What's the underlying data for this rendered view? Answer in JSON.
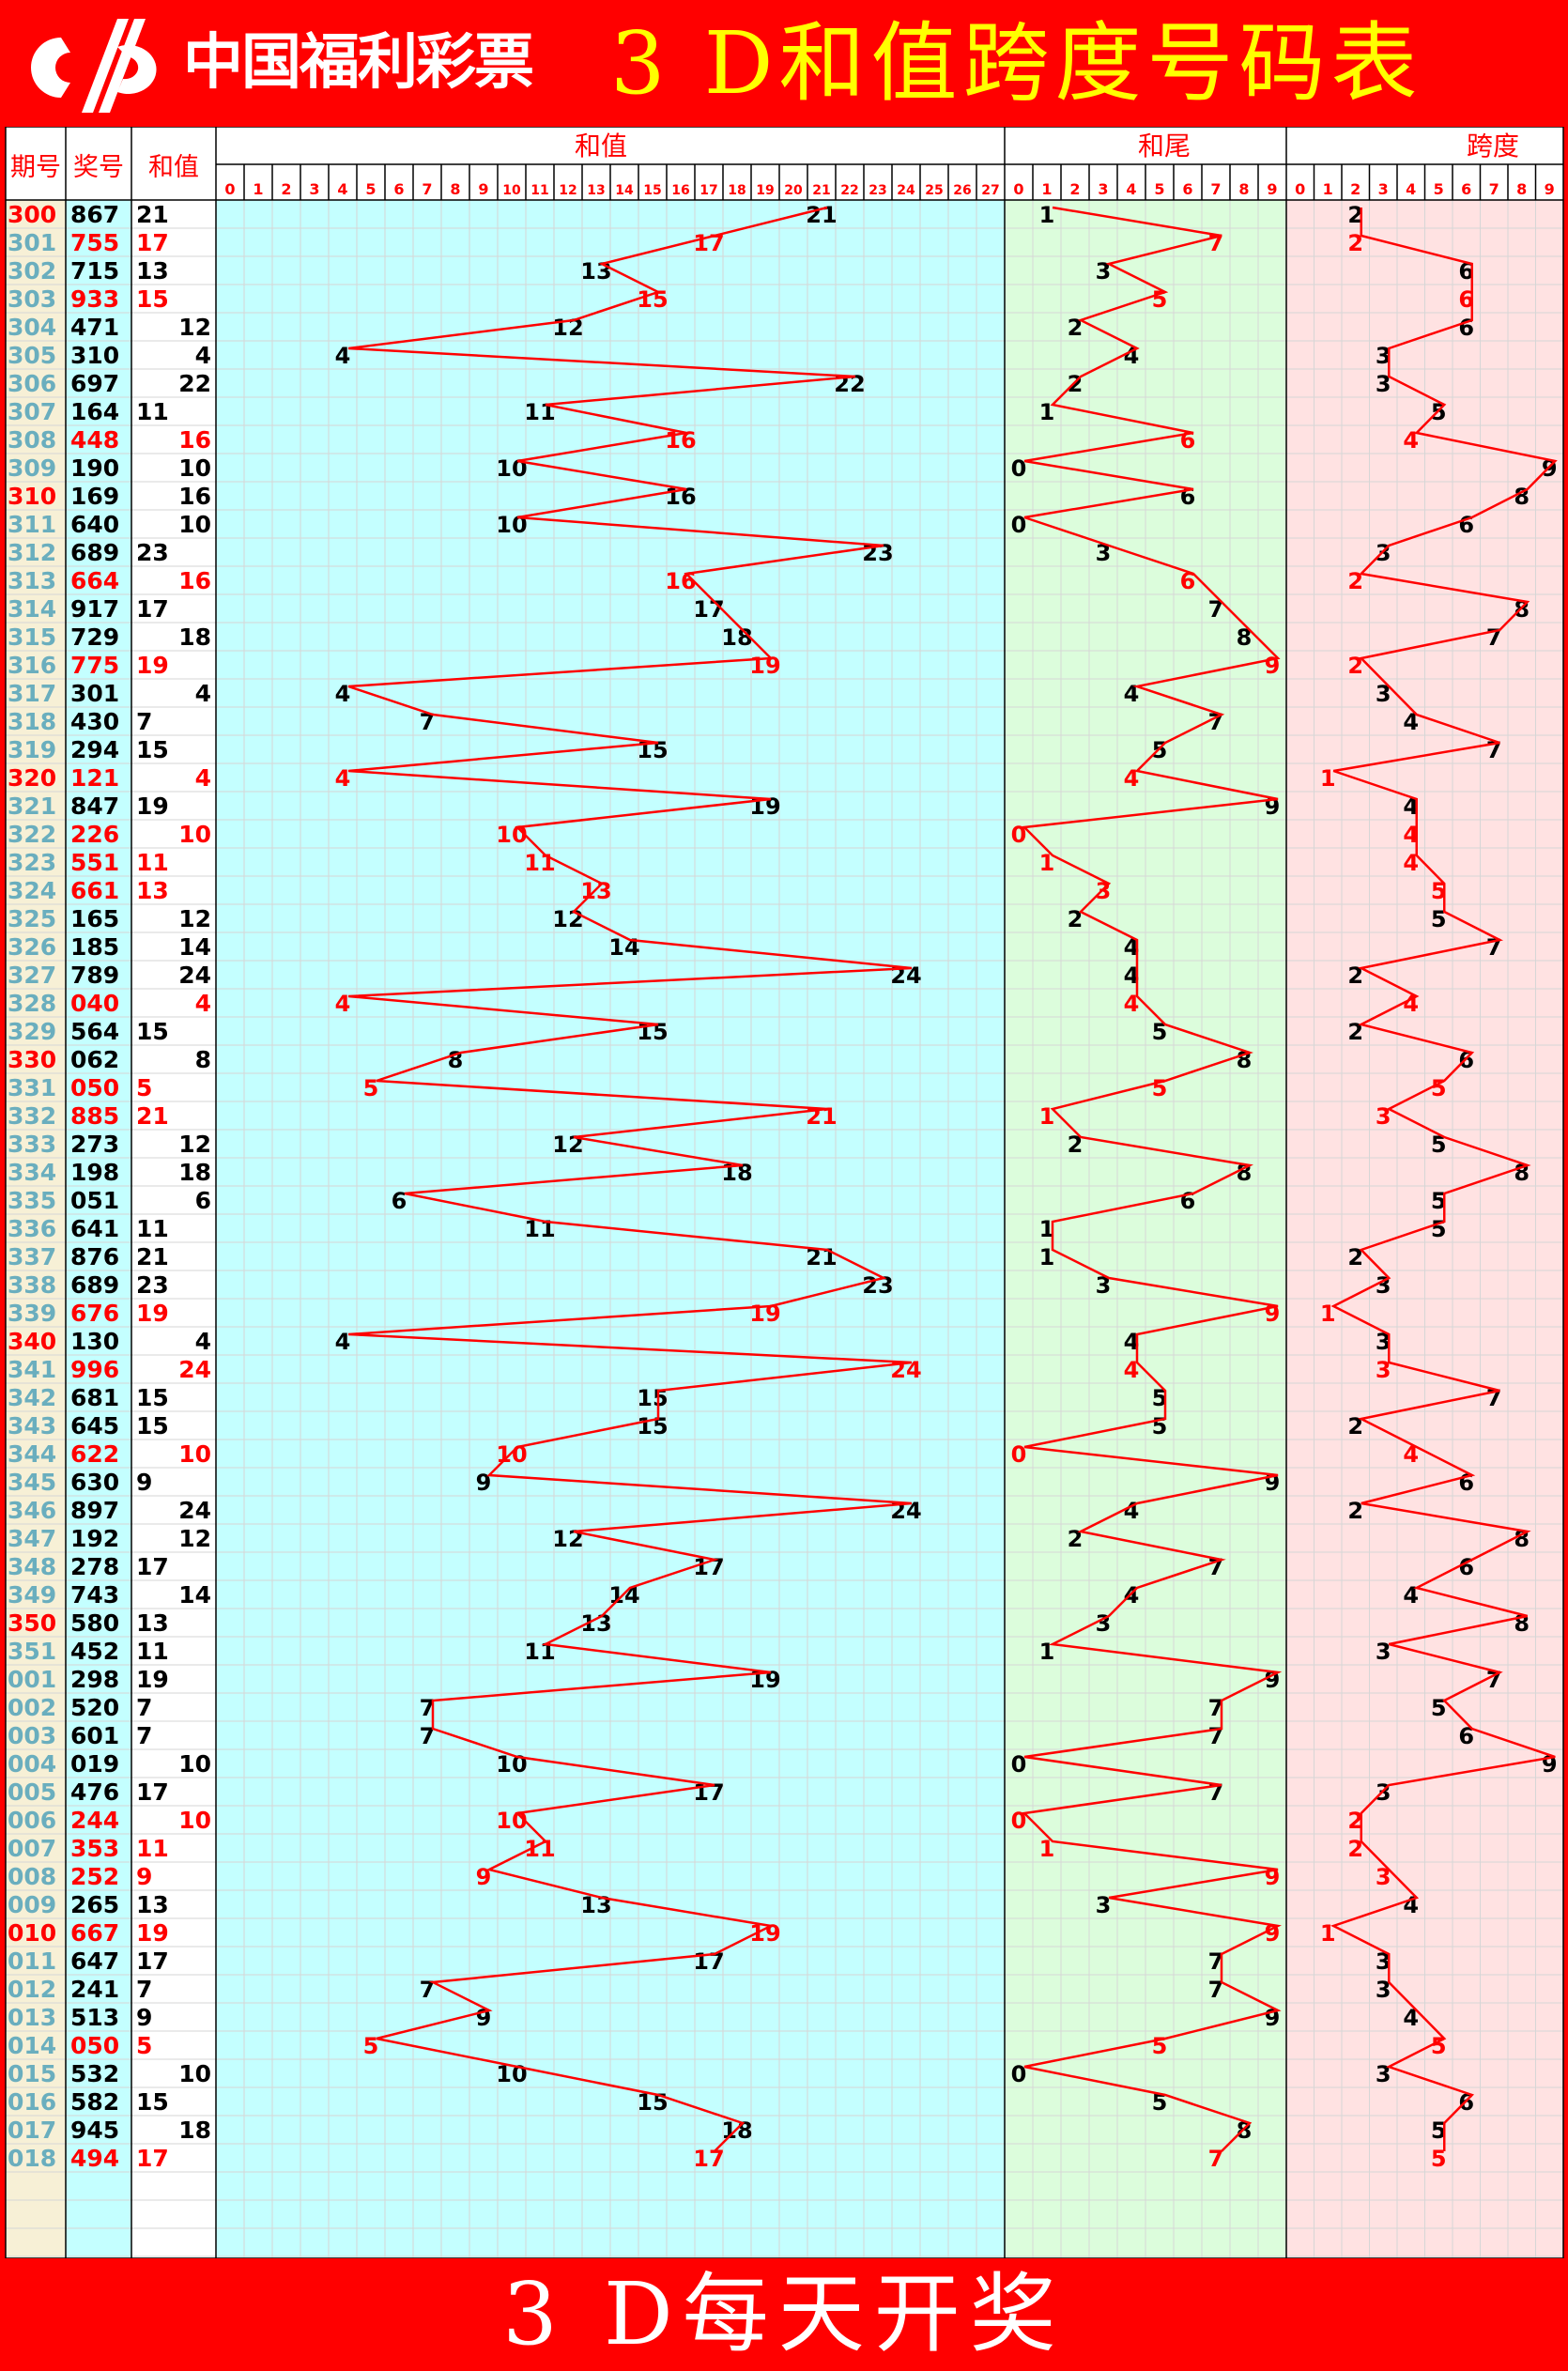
{
  "header": {
    "logo_text": "中国福利彩票",
    "title": "3 D和值跨度号码表"
  },
  "columns": {
    "period": "期号",
    "number": "奖号",
    "sum": "和值",
    "sum_chart": "和值",
    "tail_chart": "和尾",
    "span_chart": "跨度"
  },
  "footer": {
    "text": "3 D每天开奖"
  },
  "colors": {
    "banner": "#ff0000",
    "title": "#ffff00",
    "highlight": "#ff0000",
    "normal_text": "#000000",
    "period_text": "#6aaebe",
    "period_bg": "#f7f0d6",
    "number_bg": "#c4ffff",
    "sum_chart_bg": "#c4ffff",
    "tail_chart_bg": "#dcfddc",
    "span_chart_bg": "#ffe2e2",
    "line": "#ff0000"
  },
  "chart_data": {
    "type": "table",
    "sum_ticks": [
      "0",
      "1",
      "2",
      "3",
      "4",
      "5",
      "6",
      "7",
      "8",
      "9",
      "10",
      "11",
      "12",
      "13",
      "14",
      "15",
      "16",
      "17",
      "18",
      "19",
      "20",
      "21",
      "22",
      "23",
      "24",
      "25",
      "26",
      "27"
    ],
    "tail_ticks": [
      "0",
      "1",
      "2",
      "3",
      "4",
      "5",
      "6",
      "7",
      "8",
      "9"
    ],
    "span_ticks": [
      "0",
      "1",
      "2",
      "3",
      "4",
      "5",
      "6",
      "7",
      "8",
      "9"
    ],
    "row_fields": [
      "period",
      "number",
      "sum",
      "tail",
      "span",
      "period_highlight",
      "pair_highlight"
    ],
    "rows": [
      [
        "300",
        "867",
        "21",
        "1",
        "2",
        true,
        false
      ],
      [
        "301",
        "755",
        "17",
        "7",
        "2",
        false,
        true
      ],
      [
        "302",
        "715",
        "13",
        "3",
        "6",
        false,
        false
      ],
      [
        "303",
        "933",
        "15",
        "5",
        "6",
        false,
        true
      ],
      [
        "304",
        "471",
        "12",
        "2",
        "6",
        false,
        false
      ],
      [
        "305",
        "310",
        "4",
        "4",
        "3",
        false,
        false
      ],
      [
        "306",
        "697",
        "22",
        "2",
        "3",
        false,
        false
      ],
      [
        "307",
        "164",
        "11",
        "1",
        "5",
        false,
        false
      ],
      [
        "308",
        "448",
        "16",
        "6",
        "4",
        false,
        true
      ],
      [
        "309",
        "190",
        "10",
        "0",
        "9",
        false,
        false
      ],
      [
        "310",
        "169",
        "16",
        "6",
        "8",
        true,
        false
      ],
      [
        "311",
        "640",
        "10",
        "0",
        "6",
        false,
        false
      ],
      [
        "312",
        "689",
        "23",
        "3",
        "3",
        false,
        false
      ],
      [
        "313",
        "664",
        "16",
        "6",
        "2",
        false,
        true
      ],
      [
        "314",
        "917",
        "17",
        "7",
        "8",
        false,
        false
      ],
      [
        "315",
        "729",
        "18",
        "8",
        "7",
        false,
        false
      ],
      [
        "316",
        "775",
        "19",
        "9",
        "2",
        false,
        true
      ],
      [
        "317",
        "301",
        "4",
        "4",
        "3",
        false,
        false
      ],
      [
        "318",
        "430",
        "7",
        "7",
        "4",
        false,
        false
      ],
      [
        "319",
        "294",
        "15",
        "5",
        "7",
        false,
        false
      ],
      [
        "320",
        "121",
        "4",
        "4",
        "1",
        true,
        true
      ],
      [
        "321",
        "847",
        "19",
        "9",
        "4",
        false,
        false
      ],
      [
        "322",
        "226",
        "10",
        "0",
        "4",
        false,
        true
      ],
      [
        "323",
        "551",
        "11",
        "1",
        "4",
        false,
        true
      ],
      [
        "324",
        "661",
        "13",
        "3",
        "5",
        false,
        true
      ],
      [
        "325",
        "165",
        "12",
        "2",
        "5",
        false,
        false
      ],
      [
        "326",
        "185",
        "14",
        "4",
        "7",
        false,
        false
      ],
      [
        "327",
        "789",
        "24",
        "4",
        "2",
        false,
        false
      ],
      [
        "328",
        "040",
        "4",
        "4",
        "4",
        false,
        true
      ],
      [
        "329",
        "564",
        "15",
        "5",
        "2",
        false,
        false
      ],
      [
        "330",
        "062",
        "8",
        "8",
        "6",
        true,
        false
      ],
      [
        "331",
        "050",
        "5",
        "5",
        "5",
        false,
        true
      ],
      [
        "332",
        "885",
        "21",
        "1",
        "3",
        false,
        true
      ],
      [
        "333",
        "273",
        "12",
        "2",
        "5",
        false,
        false
      ],
      [
        "334",
        "198",
        "18",
        "8",
        "8",
        false,
        false
      ],
      [
        "335",
        "051",
        "6",
        "6",
        "5",
        false,
        false
      ],
      [
        "336",
        "641",
        "11",
        "1",
        "5",
        false,
        false
      ],
      [
        "337",
        "876",
        "21",
        "1",
        "2",
        false,
        false
      ],
      [
        "338",
        "689",
        "23",
        "3",
        "3",
        false,
        false
      ],
      [
        "339",
        "676",
        "19",
        "9",
        "1",
        false,
        true
      ],
      [
        "340",
        "130",
        "4",
        "4",
        "3",
        true,
        false
      ],
      [
        "341",
        "996",
        "24",
        "4",
        "3",
        false,
        true
      ],
      [
        "342",
        "681",
        "15",
        "5",
        "7",
        false,
        false
      ],
      [
        "343",
        "645",
        "15",
        "5",
        "2",
        false,
        false
      ],
      [
        "344",
        "622",
        "10",
        "0",
        "4",
        false,
        true
      ],
      [
        "345",
        "630",
        "9",
        "9",
        "6",
        false,
        false
      ],
      [
        "346",
        "897",
        "24",
        "4",
        "2",
        false,
        false
      ],
      [
        "347",
        "192",
        "12",
        "2",
        "8",
        false,
        false
      ],
      [
        "348",
        "278",
        "17",
        "7",
        "6",
        false,
        false
      ],
      [
        "349",
        "743",
        "14",
        "4",
        "4",
        false,
        false
      ],
      [
        "350",
        "580",
        "13",
        "3",
        "8",
        true,
        false
      ],
      [
        "351",
        "452",
        "11",
        "1",
        "3",
        false,
        false
      ],
      [
        "001",
        "298",
        "19",
        "9",
        "7",
        false,
        false
      ],
      [
        "002",
        "520",
        "7",
        "7",
        "5",
        false,
        false
      ],
      [
        "003",
        "601",
        "7",
        "7",
        "6",
        false,
        false
      ],
      [
        "004",
        "019",
        "10",
        "0",
        "9",
        false,
        false
      ],
      [
        "005",
        "476",
        "17",
        "7",
        "3",
        false,
        false
      ],
      [
        "006",
        "244",
        "10",
        "0",
        "2",
        false,
        true
      ],
      [
        "007",
        "353",
        "11",
        "1",
        "2",
        false,
        true
      ],
      [
        "008",
        "252",
        "9",
        "9",
        "3",
        false,
        true
      ],
      [
        "009",
        "265",
        "13",
        "3",
        "4",
        false,
        false
      ],
      [
        "010",
        "667",
        "19",
        "9",
        "1",
        true,
        true
      ],
      [
        "011",
        "647",
        "17",
        "7",
        "3",
        false,
        false
      ],
      [
        "012",
        "241",
        "7",
        "7",
        "3",
        false,
        false
      ],
      [
        "013",
        "513",
        "9",
        "9",
        "4",
        false,
        false
      ],
      [
        "014",
        "050",
        "5",
        "5",
        "5",
        false,
        true
      ],
      [
        "015",
        "532",
        "10",
        "0",
        "3",
        false,
        false
      ],
      [
        "016",
        "582",
        "15",
        "5",
        "6",
        false,
        false
      ],
      [
        "017",
        "945",
        "18",
        "8",
        "5",
        false,
        false
      ],
      [
        "018",
        "494",
        "17",
        "7",
        "5",
        false,
        true
      ]
    ]
  }
}
